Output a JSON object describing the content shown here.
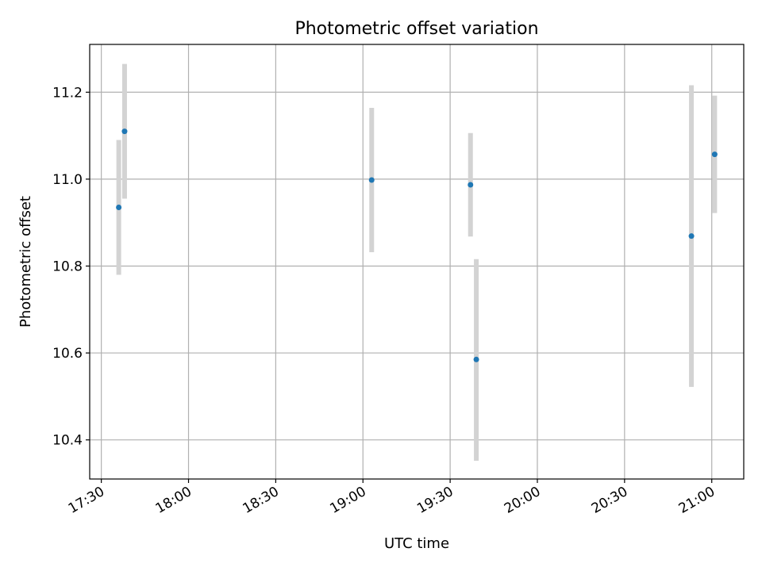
{
  "chart_data": {
    "type": "scatter",
    "title": "Photometric offset variation",
    "xlabel": "UTC time",
    "ylabel": "Photometric offset",
    "x_tick_labels": [
      "17:30",
      "18:00",
      "18:30",
      "19:00",
      "19:30",
      "20:00",
      "20:30",
      "21:00"
    ],
    "y_tick_labels": [
      "10.4",
      "10.6",
      "10.8",
      "11.0",
      "11.2"
    ],
    "y_ticks": [
      10.4,
      10.6,
      10.8,
      11.0,
      11.2
    ],
    "xlim": [
      "17:26",
      "21:11"
    ],
    "ylim": [
      10.31,
      11.31
    ],
    "grid": true,
    "points": [
      {
        "x": "17:36",
        "y": 10.935,
        "yerr_low": 10.78,
        "yerr_high": 11.09
      },
      {
        "x": "17:38",
        "y": 11.11,
        "yerr_low": 10.955,
        "yerr_high": 11.265
      },
      {
        "x": "19:03",
        "y": 10.998,
        "yerr_low": 10.832,
        "yerr_high": 11.164
      },
      {
        "x": "19:37",
        "y": 10.987,
        "yerr_low": 10.868,
        "yerr_high": 11.106
      },
      {
        "x": "19:39",
        "y": 10.585,
        "yerr_low": 10.352,
        "yerr_high": 10.816
      },
      {
        "x": "20:53",
        "y": 10.869,
        "yerr_low": 10.522,
        "yerr_high": 11.216
      },
      {
        "x": "21:01",
        "y": 11.057,
        "yerr_low": 10.922,
        "yerr_high": 11.192
      }
    ],
    "colors": {
      "marker": "#1f77b4",
      "errorbar": "#d3d3d3",
      "grid": "#b0b0b0"
    }
  }
}
